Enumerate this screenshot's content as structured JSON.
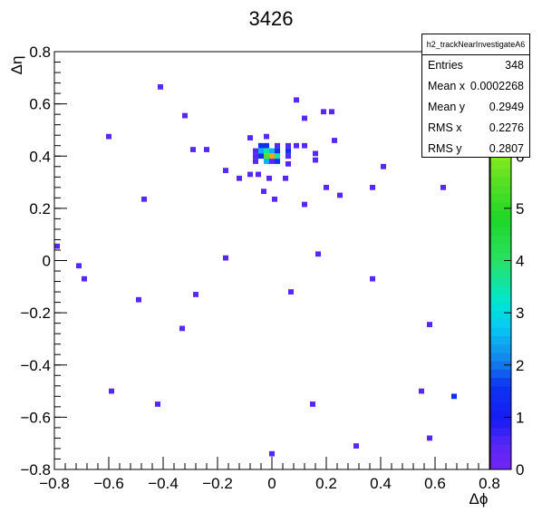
{
  "chart_data": {
    "type": "heatmap",
    "title": "3426",
    "xlabel": "Δϕ",
    "ylabel": "Δη",
    "xlim": [
      -0.8,
      0.8
    ],
    "ylim": [
      -0.8,
      0.8
    ],
    "x_ticks": [
      "−0.8",
      "−0.6",
      "−0.4",
      "−0.2",
      "0",
      "0.2",
      "0.4",
      "0.6",
      "0.8"
    ],
    "y_ticks": [
      "−0.8",
      "−0.6",
      "−0.4",
      "−0.2",
      "0",
      "0.2",
      "0.4",
      "0.6",
      "0.8"
    ],
    "colorbar": {
      "min": 0,
      "max": 8,
      "ticks": [
        "0",
        "1",
        "2",
        "3",
        "4",
        "5",
        "6",
        "7"
      ]
    },
    "stats": {
      "name": "h2_trackNearInvestigateA6",
      "rows": [
        {
          "label": "Entries",
          "value": "348"
        },
        {
          "label": "Mean x",
          "value": "0.0002268"
        },
        {
          "label": "Mean y",
          "value": "0.2949"
        },
        {
          "label": "RMS x",
          "value": "0.2276"
        },
        {
          "label": "RMS y",
          "value": "0.2807"
        }
      ]
    },
    "cells": [
      {
        "x": -0.41,
        "y": 0.665,
        "v": 1
      },
      {
        "x": 0.09,
        "y": 0.615,
        "v": 1
      },
      {
        "x": -0.32,
        "y": 0.555,
        "v": 1
      },
      {
        "x": 0.19,
        "y": 0.57,
        "v": 1
      },
      {
        "x": 0.22,
        "y": 0.57,
        "v": 1
      },
      {
        "x": 0.12,
        "y": 0.545,
        "v": 1
      },
      {
        "x": -0.6,
        "y": 0.475,
        "v": 1
      },
      {
        "x": -0.02,
        "y": 0.475,
        "v": 1
      },
      {
        "x": -0.08,
        "y": 0.47,
        "v": 1
      },
      {
        "x": 0.23,
        "y": 0.46,
        "v": 1
      },
      {
        "x": -0.29,
        "y": 0.425,
        "v": 1
      },
      {
        "x": -0.24,
        "y": 0.425,
        "v": 1
      },
      {
        "x": -0.04,
        "y": 0.44,
        "v": 2
      },
      {
        "x": -0.02,
        "y": 0.44,
        "v": 2
      },
      {
        "x": 0.02,
        "y": 0.44,
        "v": 1
      },
      {
        "x": 0.06,
        "y": 0.44,
        "v": 1
      },
      {
        "x": 0.09,
        "y": 0.44,
        "v": 1
      },
      {
        "x": 0.12,
        "y": 0.44,
        "v": 1
      },
      {
        "x": -0.06,
        "y": 0.42,
        "v": 1
      },
      {
        "x": -0.04,
        "y": 0.42,
        "v": 3
      },
      {
        "x": -0.02,
        "y": 0.42,
        "v": 4
      },
      {
        "x": 0.0,
        "y": 0.42,
        "v": 3
      },
      {
        "x": 0.02,
        "y": 0.42,
        "v": 2
      },
      {
        "x": 0.06,
        "y": 0.42,
        "v": 2
      },
      {
        "x": -0.06,
        "y": 0.4,
        "v": 1
      },
      {
        "x": -0.04,
        "y": 0.4,
        "v": 2
      },
      {
        "x": -0.02,
        "y": 0.4,
        "v": 6
      },
      {
        "x": 0.0,
        "y": 0.4,
        "v": 8
      },
      {
        "x": 0.02,
        "y": 0.4,
        "v": 4
      },
      {
        "x": 0.06,
        "y": 0.4,
        "v": 1
      },
      {
        "x": 0.16,
        "y": 0.41,
        "v": 1
      },
      {
        "x": -0.06,
        "y": 0.38,
        "v": 1
      },
      {
        "x": -0.02,
        "y": 0.38,
        "v": 3
      },
      {
        "x": 0.0,
        "y": 0.38,
        "v": 1
      },
      {
        "x": 0.02,
        "y": 0.38,
        "v": 2
      },
      {
        "x": 0.06,
        "y": 0.37,
        "v": 1
      },
      {
        "x": 0.16,
        "y": 0.385,
        "v": 1
      },
      {
        "x": 0.41,
        "y": 0.36,
        "v": 1
      },
      {
        "x": -0.17,
        "y": 0.345,
        "v": 1
      },
      {
        "x": -0.08,
        "y": 0.33,
        "v": 1
      },
      {
        "x": -0.05,
        "y": 0.33,
        "v": 1
      },
      {
        "x": -0.12,
        "y": 0.315,
        "v": 1
      },
      {
        "x": -0.01,
        "y": 0.315,
        "v": 1
      },
      {
        "x": 0.05,
        "y": 0.315,
        "v": 1
      },
      {
        "x": 0.2,
        "y": 0.28,
        "v": 1
      },
      {
        "x": 0.37,
        "y": 0.28,
        "v": 1
      },
      {
        "x": 0.63,
        "y": 0.28,
        "v": 1
      },
      {
        "x": -0.03,
        "y": 0.265,
        "v": 1
      },
      {
        "x": 0.25,
        "y": 0.25,
        "v": 1
      },
      {
        "x": -0.47,
        "y": 0.235,
        "v": 1
      },
      {
        "x": 0.01,
        "y": 0.235,
        "v": 1
      },
      {
        "x": 0.12,
        "y": 0.215,
        "v": 1
      },
      {
        "x": -0.79,
        "y": 0.055,
        "v": 1
      },
      {
        "x": 0.17,
        "y": 0.025,
        "v": 1
      },
      {
        "x": -0.17,
        "y": 0.01,
        "v": 1
      },
      {
        "x": -0.71,
        "y": -0.02,
        "v": 1
      },
      {
        "x": -0.69,
        "y": -0.07,
        "v": 1
      },
      {
        "x": 0.37,
        "y": -0.07,
        "v": 1
      },
      {
        "x": 0.07,
        "y": -0.12,
        "v": 1
      },
      {
        "x": -0.28,
        "y": -0.13,
        "v": 1
      },
      {
        "x": -0.49,
        "y": -0.15,
        "v": 1
      },
      {
        "x": 0.58,
        "y": -0.245,
        "v": 1
      },
      {
        "x": -0.33,
        "y": -0.26,
        "v": 1
      },
      {
        "x": -0.59,
        "y": -0.5,
        "v": 1
      },
      {
        "x": 0.55,
        "y": -0.5,
        "v": 1
      },
      {
        "x": 0.67,
        "y": -0.52,
        "v": 2
      },
      {
        "x": -0.42,
        "y": -0.55,
        "v": 1
      },
      {
        "x": 0.15,
        "y": -0.55,
        "v": 1
      },
      {
        "x": 0.58,
        "y": -0.68,
        "v": 1
      },
      {
        "x": 0.31,
        "y": -0.71,
        "v": 1
      },
      {
        "x": 0.0,
        "y": -0.74,
        "v": 1
      }
    ]
  }
}
